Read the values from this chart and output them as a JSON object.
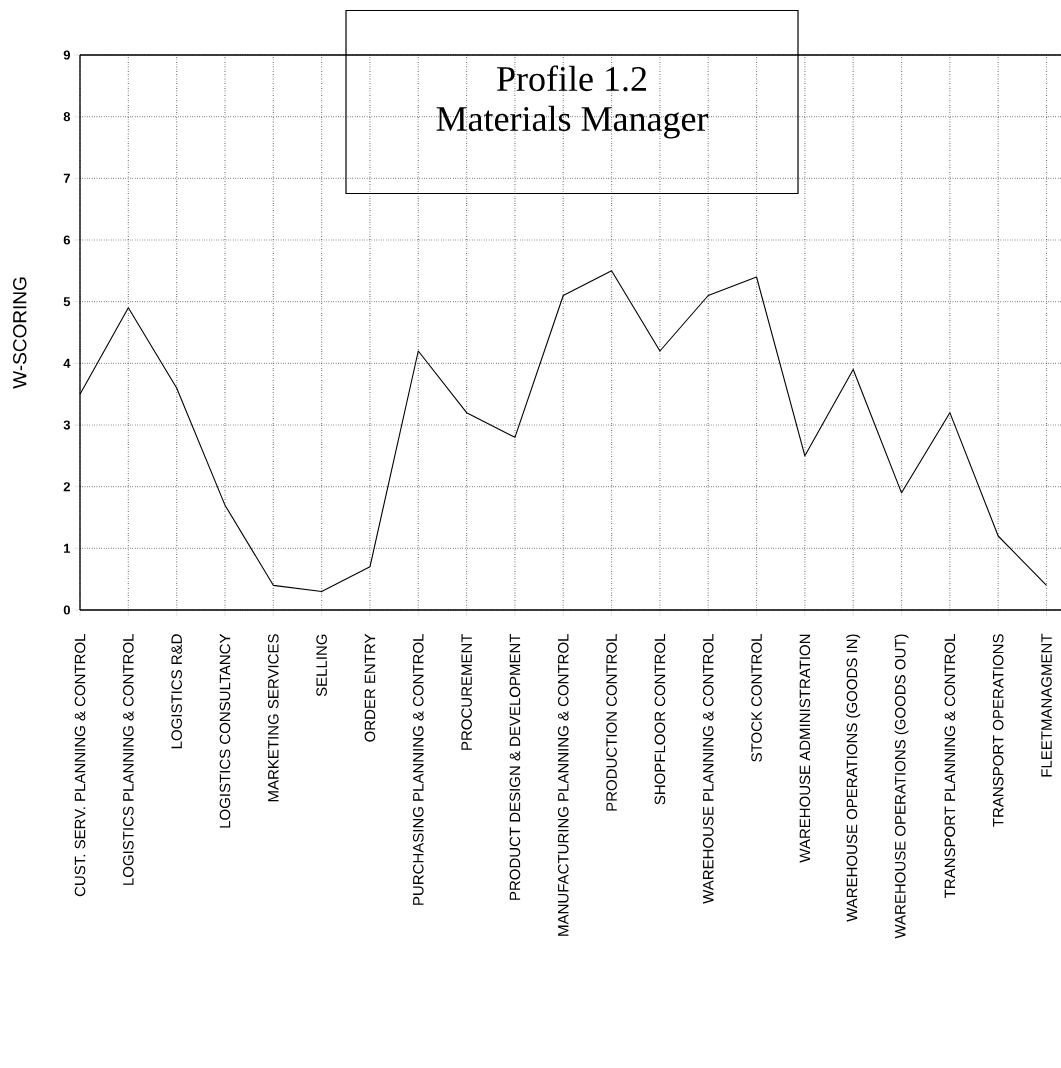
{
  "chart_data": {
    "type": "line",
    "title": "Profile 1.2",
    "subtitle": "Materials Manager",
    "ylabel": "W-SCORING",
    "categories": [
      "CUST. SERV. PLANNING & CONTROL",
      "LOGISTICS PLANNING & CONTROL",
      "LOGISTICS R&D",
      "LOGISTICS CONSULTANCY",
      "MARKETING SERVICES",
      "SELLING",
      "ORDER ENTRY",
      "PURCHASING PLANNING & CONTROL",
      "PROCUREMENT",
      "PRODUCT DESIGN & DEVELOPMENT",
      "MANUFACTURING PLANNING & CONTROL",
      "PRODUCTION CONTROL",
      "SHOPFLOOR CONTROL",
      "WAREHOUSE PLANNING & CONTROL",
      "STOCK CONTROL",
      "WAREHOUSE ADMINISTRATION",
      "WAREHOUSE OPERATIONS (GOODS IN)",
      "WAREHOUSE OPERATIONS (GOODS OUT)",
      "TRANSPORT PLANNING & CONTROL",
      "TRANSPORT OPERATIONS",
      "FLEETMANAGMENT"
    ],
    "series": [
      {
        "color": "#000000",
        "values": [
          3.5,
          4.9,
          3.6,
          1.7,
          0.4,
          0.3,
          0.7,
          4.2,
          3.2,
          2.8,
          5.1,
          5.5,
          4.2,
          5.1,
          5.4,
          2.5,
          3.9,
          1.9,
          3.2,
          1.2,
          0.4
        ]
      }
    ],
    "ylim": [
      0,
      9
    ],
    "yticks": [
      0,
      1,
      2,
      3,
      4,
      5,
      6,
      7,
      8,
      9
    ],
    "grid": true,
    "marker": "none",
    "line_style": "solid"
  }
}
